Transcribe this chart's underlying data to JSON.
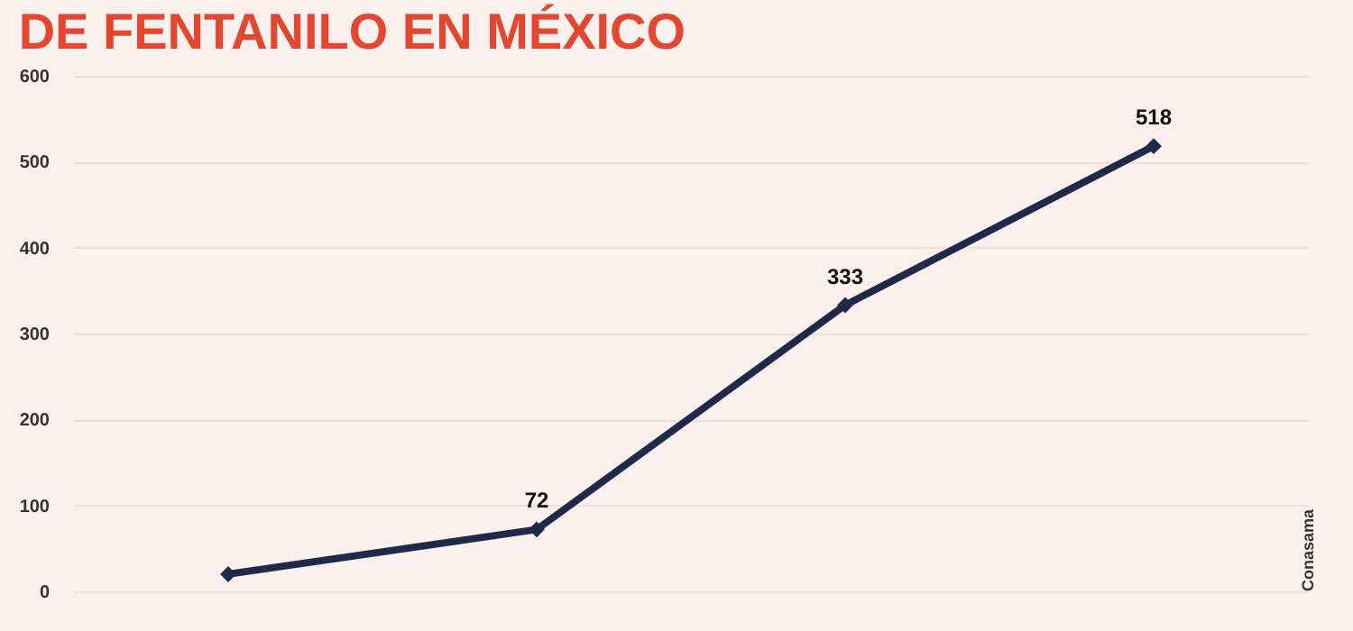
{
  "chart_data": {
    "type": "line",
    "title": "DE FENTANILO EN MÉXICO",
    "categories": [
      null,
      null,
      null,
      null
    ],
    "series": [
      {
        "color": "#1f2a4a",
        "values": [
          20,
          72,
          333,
          518
        ],
        "value_labels": [
          null,
          "72",
          "333",
          "518"
        ]
      }
    ],
    "ylim": [
      0,
      600
    ],
    "yticks": [
      0,
      100,
      200,
      300,
      400,
      500,
      600
    ],
    "grid": "y",
    "marker": "diamond",
    "line_style": "solid",
    "annotations": [
      "Conasama"
    ]
  }
}
